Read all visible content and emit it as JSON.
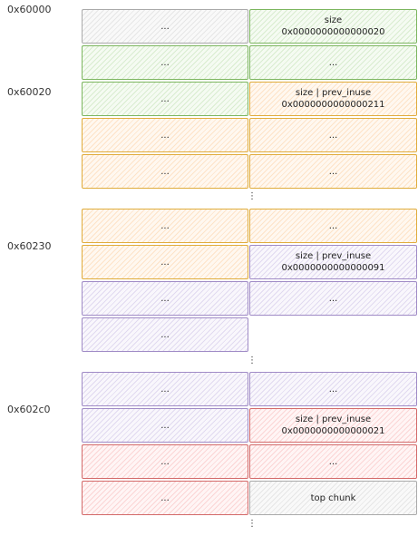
{
  "addresses": [
    "0x60000",
    "0x60020",
    "0x60230",
    "0x602c0"
  ],
  "ellipsis": "...",
  "vertical_ellipsis": "⋮",
  "colors": {
    "gray": "#aaaaaa",
    "green": "#7cb65f",
    "orange": "#e0ac3c",
    "purple": "#a08bc6",
    "red": "#d36a6a"
  },
  "cells": {
    "r0_right_l1": "size",
    "r0_right_l2": "0x0000000000000020",
    "r2_right_l1": "size | prev_inuse",
    "r2_right_l2": "0x0000000000000211",
    "r6_right_l1": "size | prev_inuse",
    "r6_right_l2": "0x0000000000000091",
    "r11_right_l1": "size | prev_inuse",
    "r11_right_l2": "0x0000000000000021",
    "r13_right": "top chunk"
  }
}
